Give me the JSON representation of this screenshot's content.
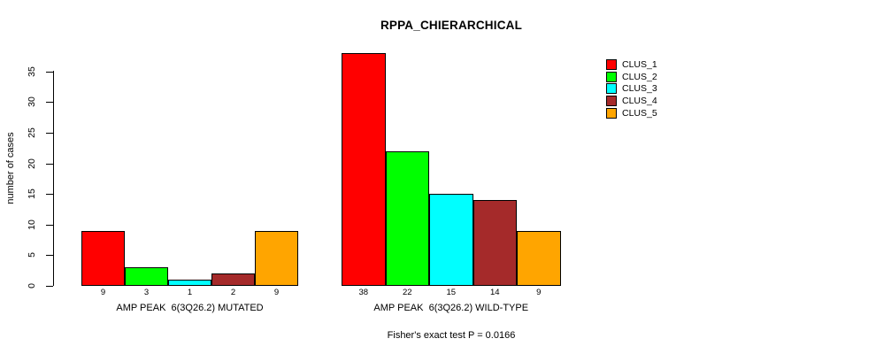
{
  "chart_data": {
    "type": "bar",
    "title": "RPPA_CHIERARCHICAL",
    "ylabel": "number of cases",
    "xlabel": "",
    "ylim": [
      0,
      38
    ],
    "yticks": [
      0,
      5,
      10,
      15,
      20,
      25,
      30,
      35
    ],
    "grid": false,
    "legend_position": "top-right",
    "categories": [
      "CLUS_1",
      "CLUS_2",
      "CLUS_3",
      "CLUS_4",
      "CLUS_5"
    ],
    "groups": [
      {
        "label": "AMP PEAK  6(3Q26.2) MUTATED",
        "values": [
          9,
          3,
          1,
          2,
          9
        ]
      },
      {
        "label": "AMP PEAK  6(3Q26.2) WILD-TYPE",
        "values": [
          38,
          22,
          15,
          14,
          9
        ]
      }
    ],
    "legend": [
      {
        "label": "CLUS_1",
        "color": "#FF0000"
      },
      {
        "label": "CLUS_2",
        "color": "#00FF00"
      },
      {
        "label": "CLUS_3",
        "color": "#00FFFF"
      },
      {
        "label": "CLUS_4",
        "color": "#A52A2A"
      },
      {
        "label": "CLUS_5",
        "color": "#FFA500"
      }
    ],
    "footnote": "Fisher's exact test P = 0.0166"
  }
}
